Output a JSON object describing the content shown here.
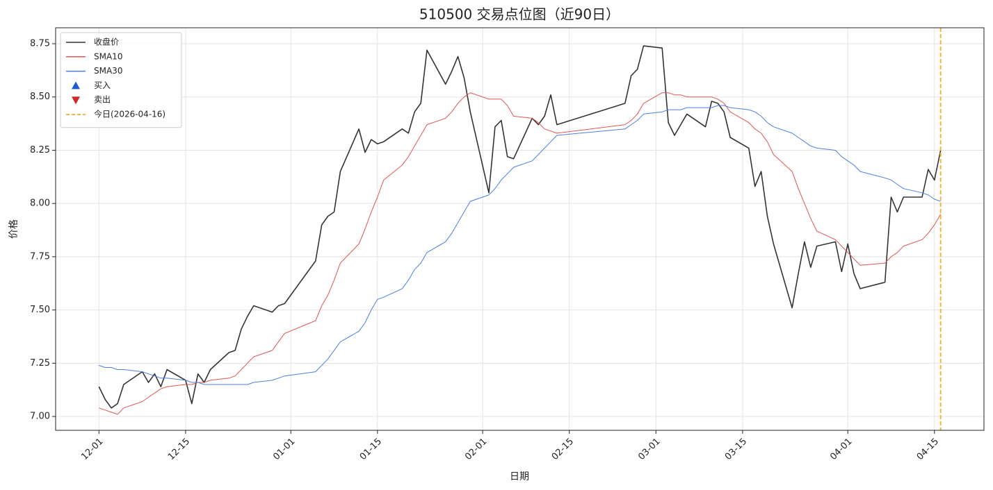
{
  "chart_data": {
    "type": "line",
    "title": "510500 交易点位图（近90日）",
    "xlabel": "日期",
    "ylabel": "价格",
    "x": [
      "12-01",
      "12-02",
      "12-03",
      "12-04",
      "12-05",
      "12-08",
      "12-09",
      "12-10",
      "12-11",
      "12-12",
      "12-15",
      "12-16",
      "12-17",
      "12-18",
      "12-19",
      "12-22",
      "12-23",
      "12-24",
      "12-25",
      "12-26",
      "12-29",
      "12-30",
      "12-31",
      "01-05",
      "01-06",
      "01-07",
      "01-08",
      "01-09",
      "01-12",
      "01-13",
      "01-14",
      "01-15",
      "01-16",
      "01-19",
      "01-20",
      "01-21",
      "01-22",
      "01-23",
      "01-26",
      "01-27",
      "01-28",
      "01-29",
      "01-30",
      "02-02",
      "02-03",
      "02-04",
      "02-05",
      "02-06",
      "02-09",
      "02-10",
      "02-11",
      "02-12",
      "02-13",
      "02-24",
      "02-25",
      "02-26",
      "02-27",
      "03-02",
      "03-03",
      "03-04",
      "03-05",
      "03-06",
      "03-09",
      "03-10",
      "03-11",
      "03-12",
      "03-13",
      "03-16",
      "03-17",
      "03-18",
      "03-19",
      "03-20",
      "03-23",
      "03-24",
      "03-25",
      "03-26",
      "03-27",
      "03-30",
      "03-31",
      "04-01",
      "04-02",
      "04-03",
      "04-07",
      "04-08",
      "04-09",
      "04-10",
      "04-13",
      "04-14",
      "04-15",
      "04-16"
    ],
    "series": [
      {
        "name": "收盘价",
        "color": "#333333",
        "width": 1.6,
        "values": [
          7.14,
          7.08,
          7.04,
          7.06,
          7.15,
          7.21,
          7.16,
          7.2,
          7.14,
          7.22,
          7.17,
          7.06,
          7.2,
          7.16,
          7.22,
          7.3,
          7.31,
          7.41,
          7.47,
          7.52,
          7.49,
          7.52,
          7.53,
          7.73,
          7.9,
          7.94,
          7.96,
          8.15,
          8.35,
          8.24,
          8.3,
          8.28,
          8.29,
          8.35,
          8.33,
          8.43,
          8.47,
          8.72,
          8.56,
          8.62,
          8.69,
          8.59,
          8.43,
          8.05,
          8.36,
          8.39,
          8.22,
          8.21,
          8.4,
          8.37,
          8.41,
          8.51,
          8.37,
          8.47,
          8.6,
          8.63,
          8.74,
          8.73,
          8.38,
          8.32,
          8.37,
          8.42,
          8.36,
          8.48,
          8.47,
          8.43,
          8.31,
          8.26,
          8.08,
          8.15,
          7.94,
          7.81,
          7.51,
          7.67,
          7.82,
          7.7,
          7.8,
          7.82,
          7.68,
          7.81,
          7.67,
          7.6,
          7.63,
          8.03,
          7.96,
          8.03,
          8.03,
          8.16,
          8.11,
          8.25
        ]
      },
      {
        "name": "SMA10",
        "color": "#e05555",
        "width": 1,
        "values": [
          7.04,
          7.03,
          7.02,
          7.01,
          7.04,
          7.07,
          7.09,
          7.11,
          7.13,
          7.14,
          7.15,
          7.15,
          7.16,
          7.16,
          7.17,
          7.18,
          7.19,
          7.22,
          7.25,
          7.28,
          7.31,
          7.35,
          7.39,
          7.45,
          7.52,
          7.57,
          7.64,
          7.72,
          7.81,
          7.88,
          7.96,
          8.03,
          8.11,
          8.18,
          8.22,
          8.27,
          8.32,
          8.37,
          8.4,
          8.43,
          8.47,
          8.5,
          8.52,
          8.49,
          8.49,
          8.49,
          8.46,
          8.41,
          8.4,
          8.38,
          8.35,
          8.34,
          8.33,
          8.37,
          8.39,
          8.42,
          8.47,
          8.52,
          8.52,
          8.51,
          8.51,
          8.5,
          8.5,
          8.5,
          8.49,
          8.47,
          8.43,
          8.38,
          8.35,
          8.33,
          8.29,
          8.23,
          8.15,
          8.07,
          8.0,
          7.93,
          7.87,
          7.83,
          7.8,
          7.77,
          7.74,
          7.71,
          7.72,
          7.75,
          7.77,
          7.8,
          7.83,
          7.86,
          7.9,
          7.95
        ]
      },
      {
        "name": "SMA30",
        "color": "#4a7fe0",
        "width": 1,
        "values": [
          7.24,
          7.23,
          7.23,
          7.22,
          7.22,
          7.21,
          7.2,
          7.19,
          7.18,
          7.18,
          7.17,
          7.16,
          7.16,
          7.15,
          7.15,
          7.15,
          7.15,
          7.15,
          7.15,
          7.16,
          7.17,
          7.18,
          7.19,
          7.21,
          7.24,
          7.27,
          7.31,
          7.35,
          7.4,
          7.44,
          7.5,
          7.55,
          7.56,
          7.6,
          7.64,
          7.69,
          7.72,
          7.77,
          7.82,
          7.86,
          7.91,
          7.96,
          8.01,
          8.04,
          8.07,
          8.11,
          8.14,
          8.17,
          8.2,
          8.23,
          8.26,
          8.29,
          8.32,
          8.35,
          8.37,
          8.39,
          8.42,
          8.43,
          8.44,
          8.44,
          8.44,
          8.45,
          8.45,
          8.45,
          8.46,
          8.46,
          8.45,
          8.44,
          8.43,
          8.41,
          8.38,
          8.36,
          8.33,
          8.31,
          8.29,
          8.27,
          8.26,
          8.25,
          8.22,
          8.2,
          8.18,
          8.15,
          8.12,
          8.11,
          8.09,
          8.07,
          8.05,
          8.04,
          8.02,
          8.01
        ]
      }
    ],
    "signals": [
      {
        "name": "买入",
        "color": "#1f5bd6",
        "marker": "triangle-up",
        "x": [],
        "values": []
      },
      {
        "name": "卖出",
        "color": "#d62728",
        "marker": "triangle-down",
        "x": [],
        "values": []
      }
    ],
    "vline": {
      "x": "04-16",
      "label": "今日(2026-04-16)",
      "color": "#f5b342"
    },
    "xlim": [
      "11-24",
      "04-23"
    ],
    "xticks": [
      "12-01",
      "12-15",
      "01-01",
      "01-15",
      "02-01",
      "02-15",
      "03-01",
      "03-15",
      "04-01",
      "04-15"
    ],
    "ylim": [
      6.935,
      8.825
    ],
    "yticks": [
      {
        "value": 7,
        "label": "7.00"
      },
      {
        "value": 7.25,
        "label": "7.25"
      },
      {
        "value": 7.5,
        "label": "7.50"
      },
      {
        "value": 7.75,
        "label": "7.75"
      },
      {
        "value": 8,
        "label": "8.00"
      },
      {
        "value": 8.25,
        "label": "8.25"
      },
      {
        "value": 8.5,
        "label": "8.50"
      },
      {
        "value": 8.75,
        "label": "8.75"
      }
    ],
    "grid": true,
    "legend": "upper left"
  }
}
